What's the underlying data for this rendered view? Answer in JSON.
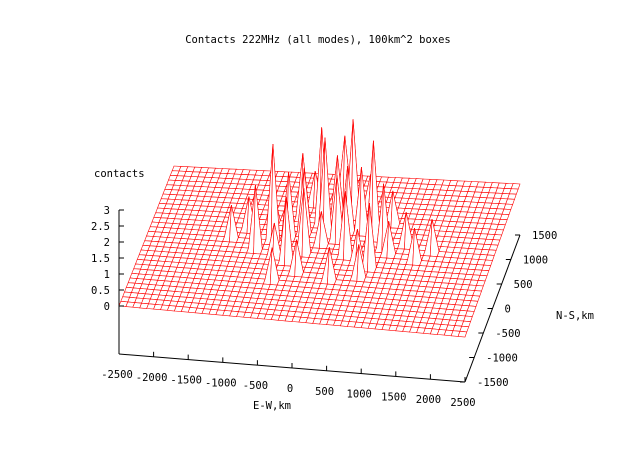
{
  "chart_data": {
    "type": "surface3d",
    "title": "Contacts 222MHz (all modes), 100km^2 boxes",
    "xlabel": "E-W,km",
    "ylabel": "N-S,km",
    "zlabel": "contacts",
    "x_ticks": [
      -2500,
      -2000,
      -1500,
      -1000,
      -500,
      0,
      500,
      1000,
      1500,
      2000,
      2500
    ],
    "y_ticks": [
      -1500,
      -1000,
      -500,
      0,
      500,
      1000,
      1500
    ],
    "z_ticks": [
      "3",
      "2.5",
      "2",
      "1.5",
      "1",
      "0.5",
      "0"
    ],
    "x_range": [
      -2500,
      2500
    ],
    "y_range": [
      -1500,
      1500
    ],
    "z_range": [
      0,
      3
    ],
    "grid_step_km": 100,
    "surface_color": "#ff0000",
    "axis_color": "#000000",
    "peaks": [
      {
        "x": -700,
        "y": 100,
        "z": 3
      },
      {
        "x": -500,
        "y": 200,
        "z": 2
      },
      {
        "x": -300,
        "y": 300,
        "z": 2
      },
      {
        "x": -100,
        "y": 500,
        "z": 3
      },
      {
        "x": 100,
        "y": 600,
        "z": 2
      },
      {
        "x": 300,
        "y": 700,
        "z": 3
      },
      {
        "x": 500,
        "y": 400,
        "z": 2
      },
      {
        "x": 700,
        "y": 300,
        "z": 3
      },
      {
        "x": 900,
        "y": 100,
        "z": 2
      },
      {
        "x": -900,
        "y": -100,
        "z": 2
      },
      {
        "x": -600,
        "y": -200,
        "z": 1
      },
      {
        "x": -400,
        "y": -300,
        "z": 2
      },
      {
        "x": -200,
        "y": -100,
        "z": 2
      },
      {
        "x": 0,
        "y": 100,
        "z": 1
      },
      {
        "x": 200,
        "y": 200,
        "z": 2
      },
      {
        "x": 400,
        "y": -100,
        "z": 2
      },
      {
        "x": 600,
        "y": -200,
        "z": 1
      },
      {
        "x": 800,
        "y": -300,
        "z": 2
      },
      {
        "x": 1000,
        "y": 0,
        "z": 1
      },
      {
        "x": 1200,
        "y": 200,
        "z": 1
      },
      {
        "x": -1100,
        "y": 300,
        "z": 1
      },
      {
        "x": -1300,
        "y": 100,
        "z": 1
      },
      {
        "x": 1400,
        "y": -100,
        "z": 1
      },
      {
        "x": 1600,
        "y": 100,
        "z": 1
      },
      {
        "x": -300,
        "y": 900,
        "z": 1
      },
      {
        "x": 100,
        "y": 1000,
        "z": 2
      },
      {
        "x": 500,
        "y": 900,
        "z": 1
      },
      {
        "x": -800,
        "y": 500,
        "z": 1
      },
      {
        "x": 900,
        "y": 600,
        "z": 1
      },
      {
        "x": -200,
        "y": -500,
        "z": 1
      },
      {
        "x": 300,
        "y": -600,
        "z": 1
      },
      {
        "x": 700,
        "y": -500,
        "z": 1
      },
      {
        "x": -500,
        "y": -700,
        "z": 1
      },
      {
        "x": 0,
        "y": 300,
        "z": 3
      },
      {
        "x": -400,
        "y": 600,
        "z": 2
      },
      {
        "x": 300,
        "y": 400,
        "z": 2
      }
    ]
  }
}
